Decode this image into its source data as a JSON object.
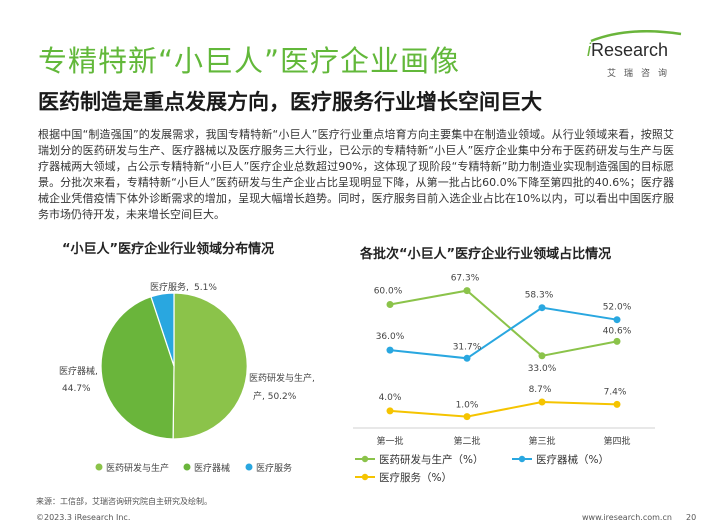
{
  "header": {
    "title": "专精特新“小巨人”医疗企业画像",
    "subtitle": "医药制造是重点发展方向，医疗服务行业增长空间巨大"
  },
  "logo": {
    "brand": "Research",
    "brand_i": "i",
    "tagline": "艾瑞咨询"
  },
  "body_text": "根据中国“制造强国”的发展需求，我国专精特新“小巨人”医疗行业重点培育方向主要集中在制造业领域。从行业领域来看，按照艾瑞划分的医药研发与生产、医疗器械以及医疗服务三大行业，已公示的专精特新“小巨人”医疗企业集中分布于医药研发与生产与医疗器械两大领域，占公示专精特新“小巨人”医疗企业总数超过90%，这体现了现阶段“专精特新”助力制造业实现制造强国的目标愿景。分批次来看，专精特新“小巨人”医药研发与生产企业占比呈现明显下降，从第一批占比60.0%下降至第四批的40.6%；医疗器械企业凭借疫情下体外诊断需求的增加，呈现大幅增长趋势。同时，医疗服务目前入选企业占比在10%以内，可以看出中国医疗服务市场仍待开发，未来增长空间巨大。",
  "colors": {
    "green": "#8bc34a",
    "blue": "#29a7e0",
    "yellow": "#f5c400",
    "title_green": "#62b83a"
  },
  "chart_data": [
    {
      "type": "pie",
      "title": "“小巨人”医疗企业行业领域分布情况",
      "categories": [
        "医药研发与生产",
        "医疗器械",
        "医疗服务"
      ],
      "values": [
        50.2,
        44.7,
        5.1
      ],
      "labels": [
        "医药研发与生产,",
        "医疗器械,",
        "医疗服务,"
      ],
      "value_labels": [
        "产, 50.2%",
        "44.7%",
        "5.1%"
      ],
      "colors": [
        "#8bc34a",
        "#6ab53b",
        "#29a7e0"
      ],
      "legend": [
        "医药研发与生产",
        "医疗器械",
        "医疗服务"
      ],
      "legend_position": "bottom"
    },
    {
      "type": "line",
      "title": "各批次“小巨人”医疗企业行业领域占比情况",
      "categories": [
        "第一批",
        "第二批",
        "第三批",
        "第四批"
      ],
      "series": [
        {
          "name": "医药研发与生产（%）",
          "values": [
            60.0,
            67.3,
            33.0,
            40.6
          ],
          "labels": [
            "60.0%",
            "67.3%",
            "33.0%",
            "40.6%"
          ],
          "color": "#8bc34a"
        },
        {
          "name": "医疗器械（%）",
          "values": [
            36.0,
            31.7,
            58.3,
            52.0
          ],
          "labels": [
            "36.0%",
            "31.7%",
            "58.3%",
            "52.0%"
          ],
          "color": "#29a7e0"
        },
        {
          "name": "医疗服务（%）",
          "values": [
            4.0,
            1.0,
            8.7,
            7.4
          ],
          "labels": [
            "4.0%",
            "1.0%",
            "8.7%",
            "7.4%"
          ],
          "color": "#f5c400"
        }
      ],
      "ylim": [
        -5,
        75
      ],
      "grid": false,
      "legend_position": "bottom"
    }
  ],
  "footer": {
    "source": "来源：工信部，艾瑞咨询研究院自主研究及绘制。",
    "copyright": "©2023.3 iResearch Inc.",
    "url": "www.iresearch.com.cn",
    "page": "20"
  }
}
